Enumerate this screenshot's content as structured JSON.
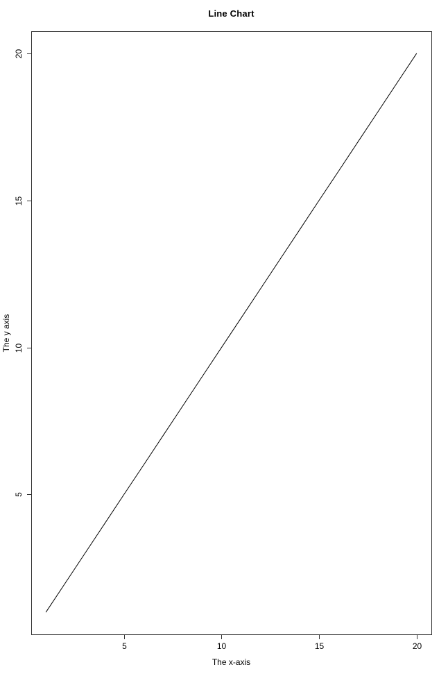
{
  "window": {
    "background_color": "#ffffff"
  },
  "chart_data": {
    "type": "line",
    "title": "Line Chart",
    "xlabel": "The x-axis",
    "ylabel": "The y axis",
    "x": [
      1,
      2,
      3,
      4,
      5,
      6,
      7,
      8,
      9,
      10,
      11,
      12,
      13,
      14,
      15,
      16,
      17,
      18,
      19,
      20
    ],
    "y": [
      1,
      2,
      3,
      4,
      5,
      6,
      7,
      8,
      9,
      10,
      11,
      12,
      13,
      14,
      15,
      16,
      17,
      18,
      19,
      20
    ],
    "series_name": "",
    "xticks": [
      5,
      10,
      15,
      20
    ],
    "yticks": [
      5,
      10,
      15,
      20
    ],
    "xlim": [
      0.24,
      20.76
    ],
    "ylim": [
      0.24,
      20.76
    ],
    "grid": false,
    "legend": null,
    "box": true,
    "line_color": "#000000",
    "axis_color": "#333333",
    "text_color": "#000000"
  }
}
